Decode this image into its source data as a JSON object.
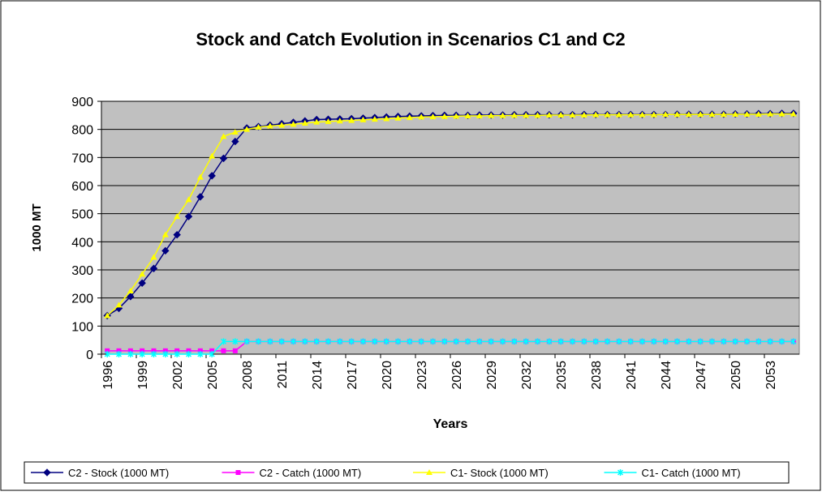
{
  "chart_data": {
    "type": "line",
    "title": "Stock and Catch Evolution in Scenarios C1 and C2",
    "y_label": "1000 MT",
    "x_label": "Years",
    "categories": [
      "1996",
      null,
      null,
      "1999",
      null,
      null,
      "2002",
      null,
      null,
      "2005",
      null,
      null,
      "2008",
      null,
      null,
      "2011",
      null,
      null,
      "2014",
      null,
      null,
      "2017",
      null,
      null,
      "2020",
      null,
      null,
      "2023",
      null,
      null,
      "2026",
      null,
      null,
      "2029",
      null,
      null,
      "2032",
      null,
      null,
      "2035",
      null,
      null,
      "2038",
      null,
      null,
      "2041",
      null,
      null,
      "2044",
      null,
      null,
      "2047",
      null,
      null,
      "2050",
      null,
      null,
      "2053",
      null,
      null
    ],
    "ylim": [
      0,
      900
    ],
    "yticks": [
      0,
      100,
      200,
      300,
      400,
      500,
      600,
      700,
      800,
      900
    ],
    "grid": true,
    "legend": "bottom",
    "series": [
      {
        "name": "C2 - Stock (1000 MT)",
        "color": "#000080",
        "marker": "diamond",
        "values": [
          137,
          163,
          205,
          253,
          305,
          368,
          425,
          490,
          560,
          635,
          697,
          757,
          805,
          810,
          815,
          820,
          825,
          830,
          835,
          836,
          837,
          838,
          840,
          842,
          844,
          846,
          847,
          848,
          849,
          850,
          850,
          850,
          851,
          851,
          851,
          852,
          852,
          852,
          852,
          852,
          852,
          853,
          853,
          853,
          853,
          853,
          853,
          853,
          853,
          854,
          854,
          854,
          854,
          854,
          855,
          855,
          856,
          856,
          857,
          857
        ]
      },
      {
        "name": "C2 - Catch (1000 MT)",
        "color": "#ff00ff",
        "marker": "square",
        "values": [
          12,
          12,
          12,
          12,
          12,
          12,
          12,
          12,
          12,
          12,
          12,
          12,
          45,
          45,
          45,
          45,
          45,
          45,
          45,
          45,
          45,
          45,
          45,
          45,
          45,
          45,
          45,
          45,
          45,
          45,
          45,
          45,
          45,
          45,
          45,
          45,
          45,
          45,
          45,
          45,
          45,
          45,
          45,
          45,
          45,
          45,
          45,
          45,
          45,
          45,
          45,
          45,
          45,
          45,
          45,
          45,
          45,
          45,
          45,
          45
        ]
      },
      {
        "name": "C1- Stock (1000 MT)",
        "color": "#ffff00",
        "marker": "triangle",
        "values": [
          137,
          175,
          225,
          285,
          345,
          425,
          490,
          550,
          630,
          705,
          775,
          790,
          800,
          808,
          812,
          815,
          818,
          822,
          826,
          828,
          830,
          832,
          834,
          836,
          838,
          840,
          842,
          844,
          845,
          846,
          847,
          848,
          848,
          849,
          849,
          850,
          850,
          850,
          851,
          851,
          851,
          851,
          852,
          852,
          852,
          852,
          852,
          852,
          853,
          853,
          853,
          853,
          853,
          853,
          854,
          854,
          854,
          855,
          855,
          855
        ]
      },
      {
        "name": "C1- Catch (1000 MT)",
        "color": "#00ffff",
        "marker": "x",
        "values": [
          0,
          0,
          0,
          0,
          0,
          0,
          0,
          0,
          0,
          0,
          45,
          45,
          45,
          45,
          45,
          45,
          45,
          45,
          45,
          45,
          45,
          45,
          45,
          45,
          45,
          45,
          45,
          45,
          45,
          45,
          45,
          45,
          45,
          45,
          45,
          45,
          45,
          45,
          45,
          45,
          45,
          45,
          45,
          45,
          45,
          45,
          45,
          45,
          45,
          45,
          45,
          45,
          45,
          45,
          45,
          45,
          45,
          45,
          45,
          45
        ]
      }
    ]
  }
}
